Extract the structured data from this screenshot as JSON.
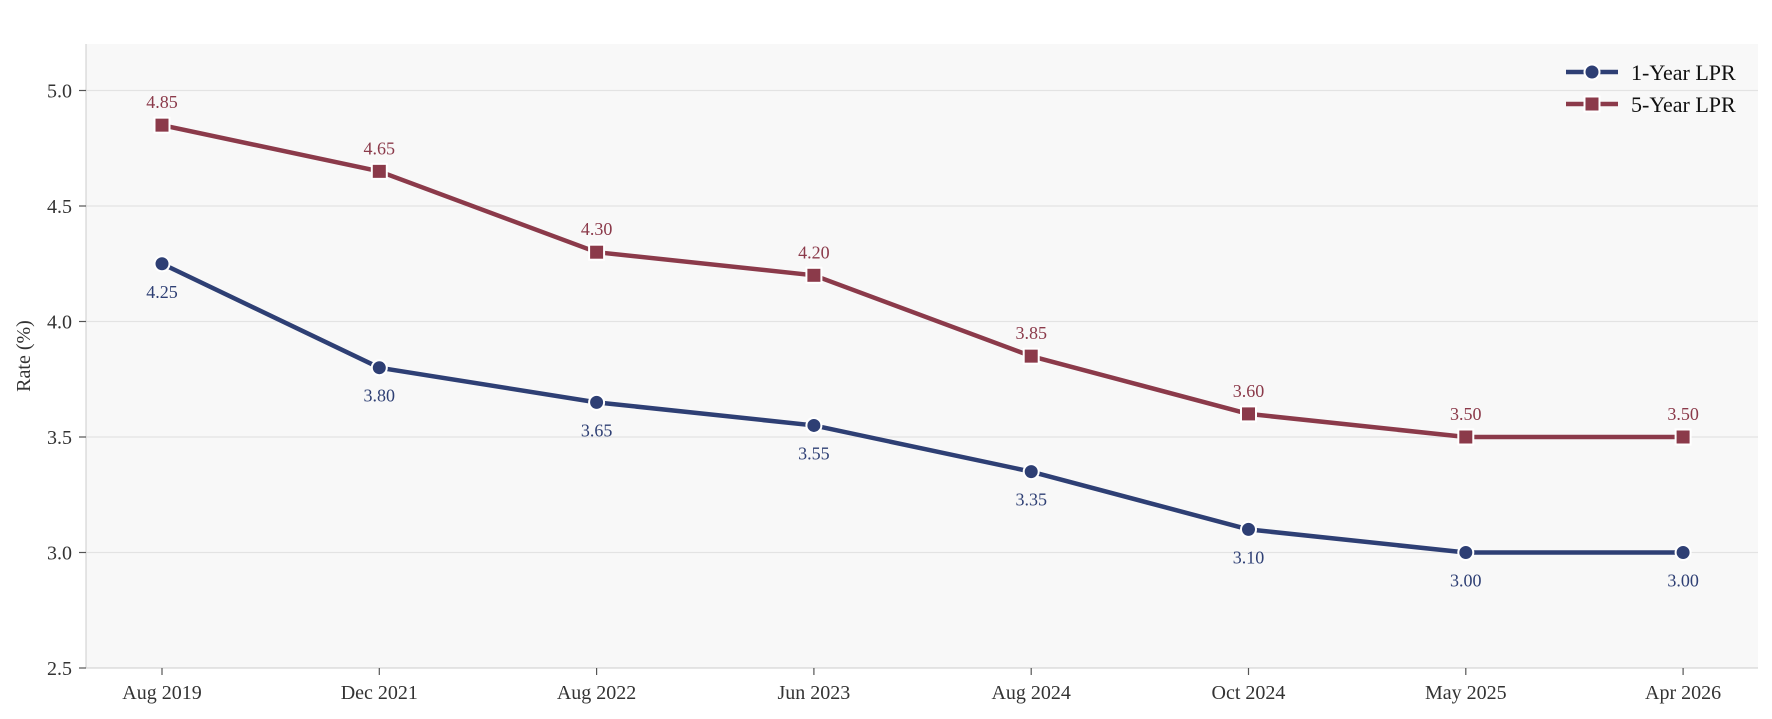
{
  "chart_data": {
    "type": "line",
    "title": "",
    "xlabel": "",
    "ylabel": "Rate (%)",
    "categories": [
      "Aug 2019",
      "Dec 2021",
      "Aug 2022",
      "Jun 2023",
      "Aug 2024",
      "Oct 2024",
      "May 2025",
      "Apr 2026"
    ],
    "ylim": [
      2.5,
      5.2
    ],
    "yticks": [
      "2.5",
      "3.0",
      "3.5",
      "4.0",
      "4.5",
      "5.0"
    ],
    "grid": "horizontal",
    "legend_position": "top-right",
    "series": [
      {
        "name": "1-Year LPR",
        "color": "#2e3f74",
        "marker": "circle",
        "label_position": "below",
        "values": [
          4.25,
          3.8,
          3.65,
          3.55,
          3.35,
          3.1,
          3.0,
          3.0
        ],
        "labels": [
          "4.25",
          "3.80",
          "3.65",
          "3.55",
          "3.35",
          "3.10",
          "3.00",
          "3.00"
        ]
      },
      {
        "name": "5-Year LPR",
        "color": "#8b3a4a",
        "marker": "square",
        "label_position": "above",
        "values": [
          4.85,
          4.65,
          4.3,
          4.2,
          3.85,
          3.6,
          3.5,
          3.5
        ],
        "labels": [
          "4.85",
          "4.65",
          "4.30",
          "4.20",
          "3.85",
          "3.60",
          "3.50",
          "3.50"
        ]
      }
    ]
  }
}
